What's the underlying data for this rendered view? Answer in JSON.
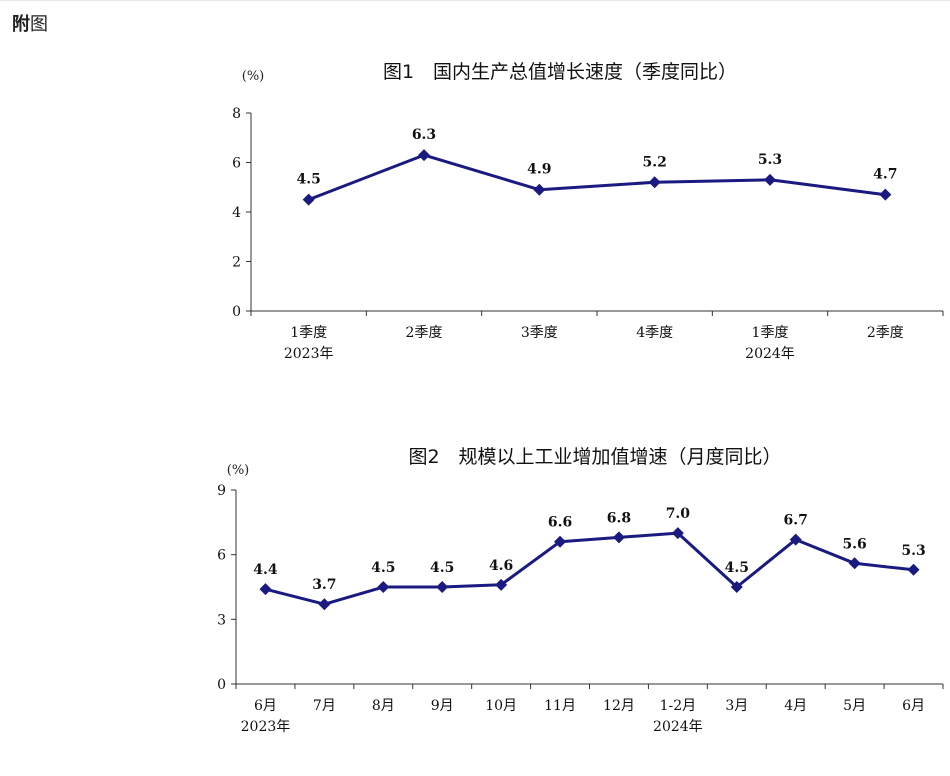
{
  "page": {
    "heading_bold": "附",
    "heading_rest": "图"
  },
  "chart_data": [
    {
      "type": "line",
      "title": "图1　国内生产总值增长速度（季度同比）",
      "unit": "(%)",
      "categories": [
        "1季度",
        "2季度",
        "3季度",
        "4季度",
        "1季度",
        "2季度"
      ],
      "year_labels": [
        "2023年",
        "",
        "",
        "",
        "2024年",
        ""
      ],
      "values": [
        4.5,
        6.3,
        4.9,
        5.2,
        5.3,
        4.7
      ],
      "data_labels": [
        "4.5",
        "6.3",
        "4.9",
        "5.2",
        "5.3",
        "4.7"
      ],
      "ylim": [
        0,
        8
      ],
      "yticks": [
        0,
        2,
        4,
        6,
        8
      ],
      "grid": false,
      "color": "#1a1a80"
    },
    {
      "type": "line",
      "title": "图2　规模以上工业增加值增速（月度同比）",
      "unit": "(%)",
      "categories": [
        "6月",
        "7月",
        "8月",
        "9月",
        "10月",
        "11月",
        "12月",
        "1-2月",
        "3月",
        "4月",
        "5月",
        "6月"
      ],
      "year_labels": [
        "2023年",
        "",
        "",
        "",
        "",
        "",
        "",
        "2024年",
        "",
        "",
        "",
        ""
      ],
      "values": [
        4.4,
        3.7,
        4.5,
        4.5,
        4.6,
        6.6,
        6.8,
        7.0,
        4.5,
        6.7,
        5.6,
        5.3
      ],
      "data_labels": [
        "4.4",
        "3.7",
        "4.5",
        "4.5",
        "4.6",
        "6.6",
        "6.8",
        "7.0",
        "4.5",
        "6.7",
        "5.6",
        "5.3"
      ],
      "ylim": [
        0,
        9
      ],
      "yticks": [
        0,
        3,
        6,
        9
      ],
      "grid": false,
      "color": "#1a1a80"
    }
  ]
}
